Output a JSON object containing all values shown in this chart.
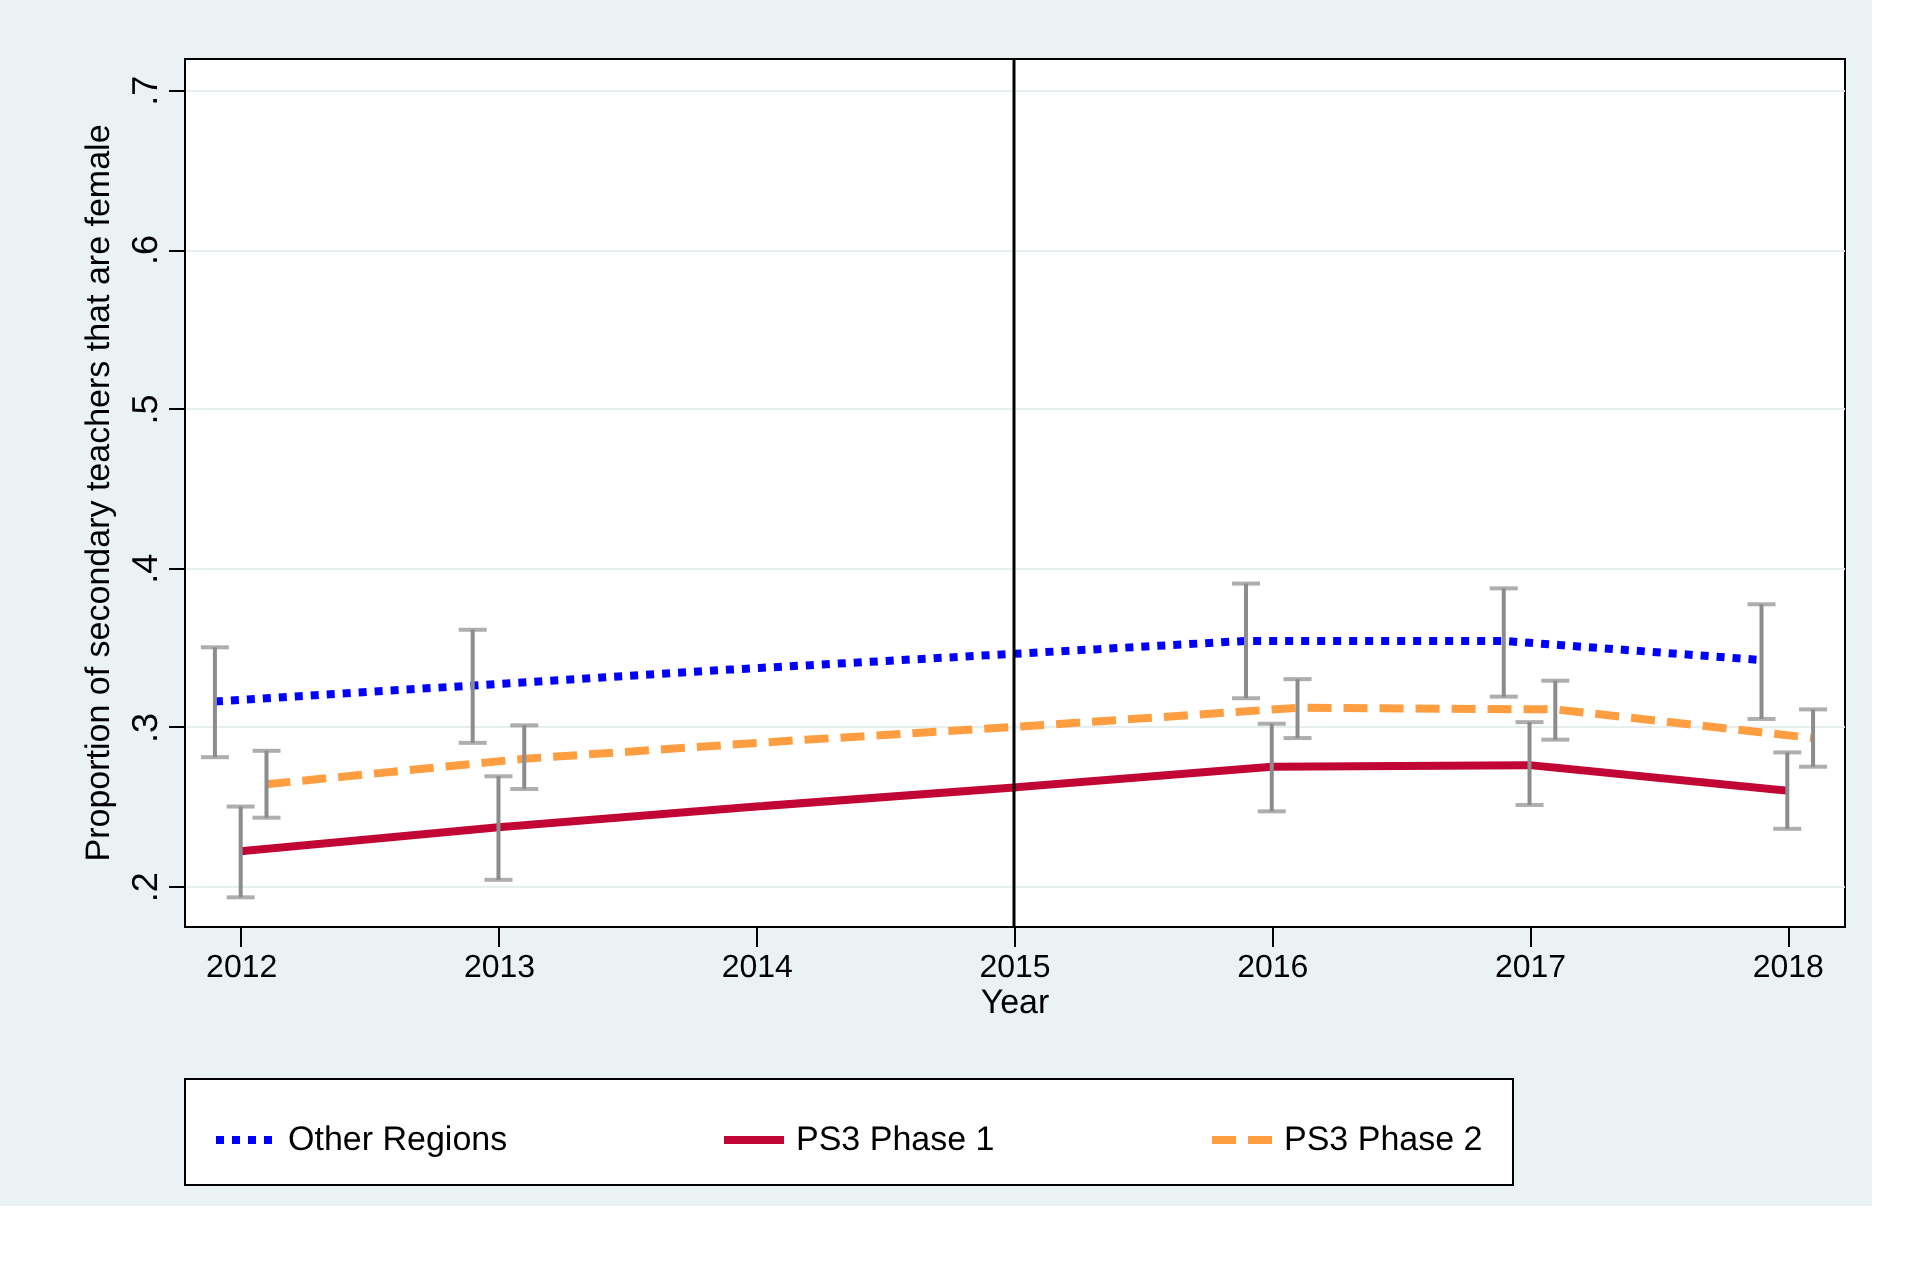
{
  "chart_data": {
    "type": "line",
    "xlabel": "Year",
    "ylabel": "Proportion of secondary teachers that are female",
    "xlim": [
      2011.78,
      2018.22
    ],
    "xticks": [
      2012,
      2013,
      2014,
      2015,
      2016,
      2017,
      2018
    ],
    "ylim": [
      0.175,
      0.72
    ],
    "yticks": [
      {
        "value": 0.2,
        "label": ".2"
      },
      {
        "value": 0.3,
        "label": ".3"
      },
      {
        "value": 0.4,
        "label": ".4"
      },
      {
        "value": 0.5,
        "label": ".5"
      },
      {
        "value": 0.6,
        "label": ".6"
      },
      {
        "value": 0.7,
        "label": ".7"
      }
    ],
    "grid": "y",
    "legend": "bottom",
    "marker": "none",
    "ref_lines": [
      {
        "axis": "x",
        "value": 2015,
        "color": "#000000",
        "line_style": "solid"
      }
    ],
    "series": [
      {
        "name": "Other Regions",
        "color": "#0000ff",
        "line_style": "dotted",
        "x": [
          2011.9,
          2012.9,
          2013.9,
          2014.9,
          2015.9,
          2016.9,
          2017.9
        ],
        "values": [
          0.316,
          0.326,
          0.336,
          0.345,
          0.354,
          0.354,
          0.342
        ],
        "errors": [
          [
            0.281,
            0.35
          ],
          [
            0.29,
            0.361
          ],
          null,
          null,
          [
            0.318,
            0.39
          ],
          [
            0.319,
            0.387
          ],
          [
            0.305,
            0.377
          ]
        ]
      },
      {
        "name": "PS3 Phase 1",
        "color": "#c10534",
        "line_style": "solid",
        "x": [
          2012,
          2013,
          2014,
          2015,
          2016,
          2017,
          2018
        ],
        "values": [
          0.222,
          0.237,
          0.25,
          0.262,
          0.275,
          0.276,
          0.26
        ],
        "errors": [
          [
            0.193,
            0.25
          ],
          [
            0.204,
            0.269
          ],
          null,
          null,
          [
            0.247,
            0.302
          ],
          [
            0.251,
            0.303
          ],
          [
            0.236,
            0.284
          ]
        ]
      },
      {
        "name": "PS3 Phase 2",
        "color": "#ff9e40",
        "line_style": "dashed",
        "x": [
          2012.1,
          2013.1,
          2014.1,
          2015.1,
          2016.1,
          2017.1,
          2018.1
        ],
        "values": [
          0.264,
          0.28,
          0.291,
          0.301,
          0.312,
          0.311,
          0.293
        ],
        "errors": [
          [
            0.243,
            0.285
          ],
          [
            0.261,
            0.301
          ],
          null,
          null,
          [
            0.293,
            0.33
          ],
          [
            0.292,
            0.329
          ],
          [
            0.275,
            0.311
          ]
        ]
      }
    ]
  }
}
